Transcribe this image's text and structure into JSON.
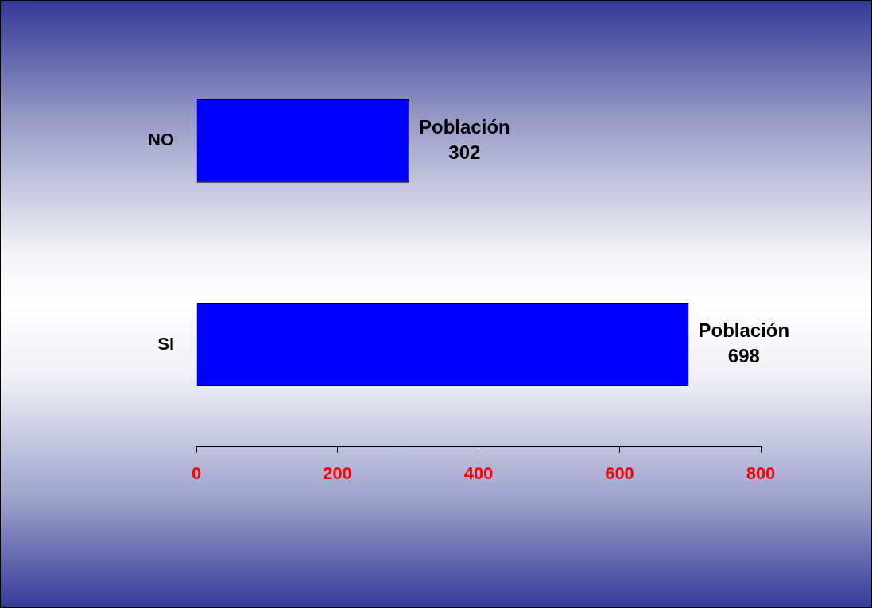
{
  "chart_data": {
    "type": "bar",
    "orientation": "horizontal",
    "categories": [
      "NO",
      "SI"
    ],
    "series": [
      {
        "name": "Población",
        "color": "#0000ff",
        "values": [
          302,
          698
        ]
      }
    ],
    "xlim": [
      0,
      800
    ],
    "xticks": [
      0,
      200,
      400,
      600,
      800
    ],
    "grid": false,
    "legend": false,
    "data_labels": true
  }
}
